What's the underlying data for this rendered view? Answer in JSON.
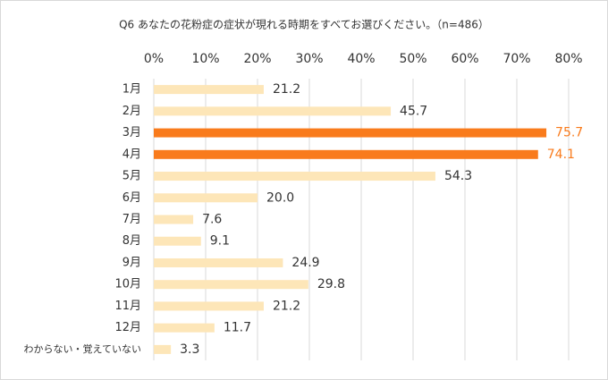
{
  "chart_data": {
    "type": "bar",
    "orientation": "horizontal",
    "title": "Q6 あなたの花粉症の症状が現れる時期をすべてお選びください。（n=486）",
    "categories": [
      "1月",
      "2月",
      "3月",
      "4月",
      "5月",
      "6月",
      "7月",
      "8月",
      "9月",
      "10月",
      "11月",
      "12月",
      "わからない・覚えていない"
    ],
    "values": [
      21.2,
      45.7,
      75.7,
      74.1,
      54.3,
      20.0,
      7.6,
      9.1,
      24.9,
      29.8,
      21.2,
      11.7,
      3.3
    ],
    "value_labels": [
      "21.2",
      "45.7",
      "75.7",
      "74.1",
      "54.3",
      "20.0",
      "7.6",
      "9.1",
      "24.9",
      "29.8",
      "21.2",
      "11.7",
      "3.3"
    ],
    "colors": [
      "#fde6b8",
      "#fde6b8",
      "#f97b1c",
      "#f97b1c",
      "#fde6b8",
      "#fde6b8",
      "#fde6b8",
      "#fde6b8",
      "#fde6b8",
      "#fde6b8",
      "#fde6b8",
      "#fde6b8",
      "#fde6b8"
    ],
    "value_label_colors": [
      "#333333",
      "#333333",
      "#f97b1c",
      "#f97b1c",
      "#333333",
      "#333333",
      "#333333",
      "#333333",
      "#333333",
      "#333333",
      "#333333",
      "#333333",
      "#333333"
    ],
    "xlim": [
      0,
      80
    ],
    "xticks": [
      {
        "value": 0,
        "label": "0%"
      },
      {
        "value": 10,
        "label": "10%"
      },
      {
        "value": 20,
        "label": "20%"
      },
      {
        "value": 30,
        "label": "30%"
      },
      {
        "value": 40,
        "label": "40%"
      },
      {
        "value": 50,
        "label": "50%"
      },
      {
        "value": 60,
        "label": "60%"
      },
      {
        "value": 70,
        "label": "70%"
      },
      {
        "value": 80,
        "label": "80%"
      }
    ],
    "grid": true
  }
}
